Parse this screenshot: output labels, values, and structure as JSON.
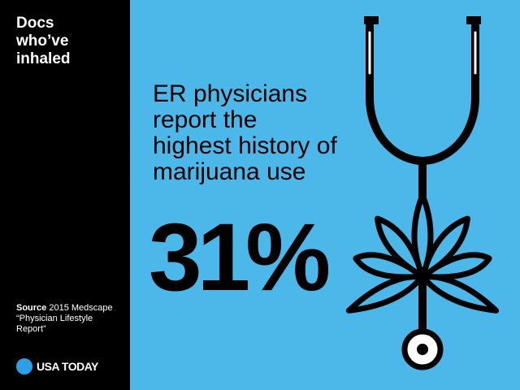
{
  "sidebar": {
    "title": "Docs who’ve inhaled",
    "source_label": "Source",
    "source_text": "2015 Medscape “Physician Lifestyle Report”",
    "brand": "USA TODAY"
  },
  "main": {
    "headline": "ER physicians report the highest history of marijuana use",
    "stat": "31%"
  }
}
